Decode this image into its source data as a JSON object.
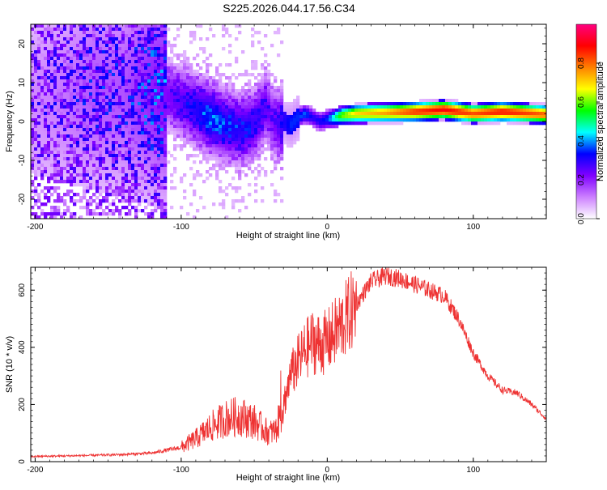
{
  "title": "S225.2026.044.17.56.C34",
  "chart_data": [
    {
      "type": "heatmap",
      "title": "S225.2026.044.17.56.C34",
      "xlabel": "Height of straight line (km)",
      "ylabel": "Frequency (Hz)",
      "xlim": [
        -203,
        150
      ],
      "ylim": [
        -25,
        25
      ],
      "xticks": [
        -200,
        -100,
        0,
        100
      ],
      "yticks": [
        -20,
        -10,
        0,
        10,
        20
      ],
      "colorbar": {
        "label": "Normalized spectral amplitude",
        "range": [
          0,
          1
        ],
        "ticks": [
          "0.0",
          "0.2",
          "0.4",
          "0.6",
          "0.8"
        ],
        "colors": [
          "#ffffff",
          "#cc80ff",
          "#8000ff",
          "#0000ff",
          "#00ffff",
          "#00ff00",
          "#ffff00",
          "#ff8000",
          "#ff0000",
          "#ff0080"
        ]
      },
      "ridge": {
        "x": [
          -203,
          -180,
          -160,
          -140,
          -120,
          -110,
          -100,
          -90,
          -80,
          -70,
          -60,
          -50,
          -42,
          -38,
          -34,
          -30,
          -25,
          -20,
          -15,
          -10,
          -5,
          0,
          10,
          20,
          40,
          60,
          80,
          100,
          120,
          150
        ],
        "y": [
          6,
          7,
          8,
          7.5,
          8,
          7,
          5,
          3,
          1,
          -1,
          -2,
          -1,
          4,
          1,
          -1,
          0,
          -1,
          1,
          2,
          1,
          0,
          0.5,
          1.5,
          2,
          2.2,
          2.5,
          3,
          2,
          2.5,
          1.8
        ],
        "amplitude": [
          0.1,
          0.12,
          0.15,
          0.15,
          0.2,
          0.22,
          0.25,
          0.3,
          0.35,
          0.32,
          0.3,
          0.28,
          0.25,
          0.22,
          0.25,
          0.3,
          0.35,
          0.35,
          0.38,
          0.3,
          0.32,
          0.35,
          0.6,
          0.7,
          0.75,
          0.85,
          0.9,
          0.82,
          0.88,
          0.8
        ]
      }
    },
    {
      "type": "line",
      "xlabel": "Height of straight line (km)",
      "ylabel": "SNR (10 * v/v)",
      "xlim": [
        -203,
        150
      ],
      "ylim": [
        0,
        680
      ],
      "xticks": [
        -200,
        -100,
        0,
        100
      ],
      "yticks": [
        0,
        200,
        400,
        600
      ],
      "series": [
        {
          "name": "SNR",
          "color": "#ee3333",
          "x": [
            -203,
            -180,
            -160,
            -140,
            -120,
            -100,
            -90,
            -80,
            -70,
            -60,
            -50,
            -45,
            -40,
            -35,
            -30,
            -25,
            -20,
            -15,
            -10,
            -5,
            0,
            10,
            20,
            30,
            40,
            50,
            60,
            70,
            80,
            90,
            100,
            110,
            120,
            130,
            140,
            150
          ],
          "y": [
            18,
            20,
            22,
            25,
            30,
            50,
            80,
            120,
            150,
            160,
            140,
            120,
            100,
            110,
            200,
            300,
            350,
            390,
            420,
            410,
            420,
            480,
            550,
            630,
            650,
            640,
            620,
            600,
            580,
            500,
            380,
            300,
            250,
            240,
            200,
            150
          ]
        }
      ]
    }
  ]
}
